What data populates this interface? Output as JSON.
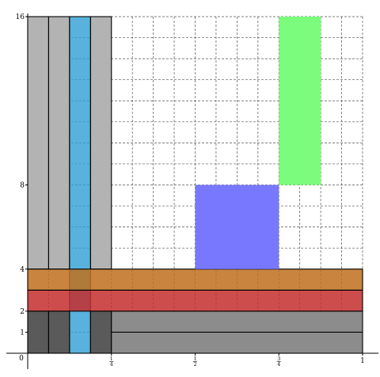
{
  "diagram": {
    "x_domain": [
      0,
      1
    ],
    "y_domain": [
      0,
      16
    ],
    "grid_cols": 16,
    "grid_rows": 16,
    "grid_style": "dashed",
    "origin_label": "0",
    "y_tick_labels": [
      {
        "value": 1,
        "text": "1"
      },
      {
        "value": 2,
        "text": "2"
      },
      {
        "value": 4,
        "text": "4"
      },
      {
        "value": 8,
        "text": "8"
      },
      {
        "value": 16,
        "text": "16"
      }
    ],
    "x_tick_labels": [
      {
        "value": 0.25,
        "num": "1",
        "den": "4"
      },
      {
        "value": 0.5,
        "num": "1",
        "den": "2"
      },
      {
        "value": 0.75,
        "num": "3",
        "den": "4"
      },
      {
        "value": 1,
        "text": "1"
      }
    ],
    "regions": [
      {
        "name": "gray-cell",
        "x0": 0,
        "x1": 0.0625,
        "y0": 4,
        "y1": 16,
        "fill": "#b3b3b3",
        "opacity": 1,
        "stroke": "#000000"
      },
      {
        "name": "gray-cell",
        "x0": 0.0625,
        "x1": 0.125,
        "y0": 4,
        "y1": 16,
        "fill": "#b3b3b3",
        "opacity": 1,
        "stroke": "#000000"
      },
      {
        "name": "gray-cell",
        "x0": 0.1875,
        "x1": 0.25,
        "y0": 4,
        "y1": 16,
        "fill": "#b3b3b3",
        "opacity": 1,
        "stroke": "#000000"
      },
      {
        "name": "blue-column",
        "x0": 0.125,
        "x1": 0.1875,
        "y0": 0,
        "y1": 16,
        "fill": "#2e9fd2",
        "opacity": 0.8,
        "stroke": "#000000"
      },
      {
        "name": "dark-cell",
        "x0": 0,
        "x1": 0.0625,
        "y0": 0,
        "y1": 2,
        "fill": "#5a5a5a",
        "opacity": 1,
        "stroke": "#000000"
      },
      {
        "name": "dark-cell",
        "x0": 0.0625,
        "x1": 0.125,
        "y0": 0,
        "y1": 2,
        "fill": "#5a5a5a",
        "opacity": 1,
        "stroke": "#000000"
      },
      {
        "name": "dark-cell",
        "x0": 0.1875,
        "x1": 0.25,
        "y0": 0,
        "y1": 2,
        "fill": "#5a5a5a",
        "opacity": 1,
        "stroke": "#000000"
      },
      {
        "name": "gray-strip",
        "x0": 0.25,
        "x1": 1,
        "y0": 0,
        "y1": 1,
        "fill": "#8c8c8c",
        "opacity": 1,
        "stroke": "#000000"
      },
      {
        "name": "gray-strip",
        "x0": 0.25,
        "x1": 1,
        "y0": 1,
        "y1": 2,
        "fill": "#8c8c8c",
        "opacity": 1,
        "stroke": "#000000"
      },
      {
        "name": "red-band",
        "x0": 0,
        "x1": 1,
        "y0": 2,
        "y1": 3,
        "fill": "#c42d2d",
        "opacity": 0.85,
        "stroke": "#000000"
      },
      {
        "name": "orange-band",
        "x0": 0,
        "x1": 1,
        "y0": 3,
        "y1": 4,
        "fill": "#c0701e",
        "opacity": 0.85,
        "stroke": "#000000"
      },
      {
        "name": "blue-rect",
        "x0": 0.5,
        "x1": 0.75,
        "y0": 4,
        "y1": 8,
        "fill": "#7878ff",
        "opacity": 1,
        "stroke": "none"
      },
      {
        "name": "green-rect",
        "x0": 0.75,
        "x1": 0.875,
        "y0": 8,
        "y1": 16,
        "fill": "#7cfc7c",
        "opacity": 1,
        "stroke": "none"
      }
    ]
  }
}
